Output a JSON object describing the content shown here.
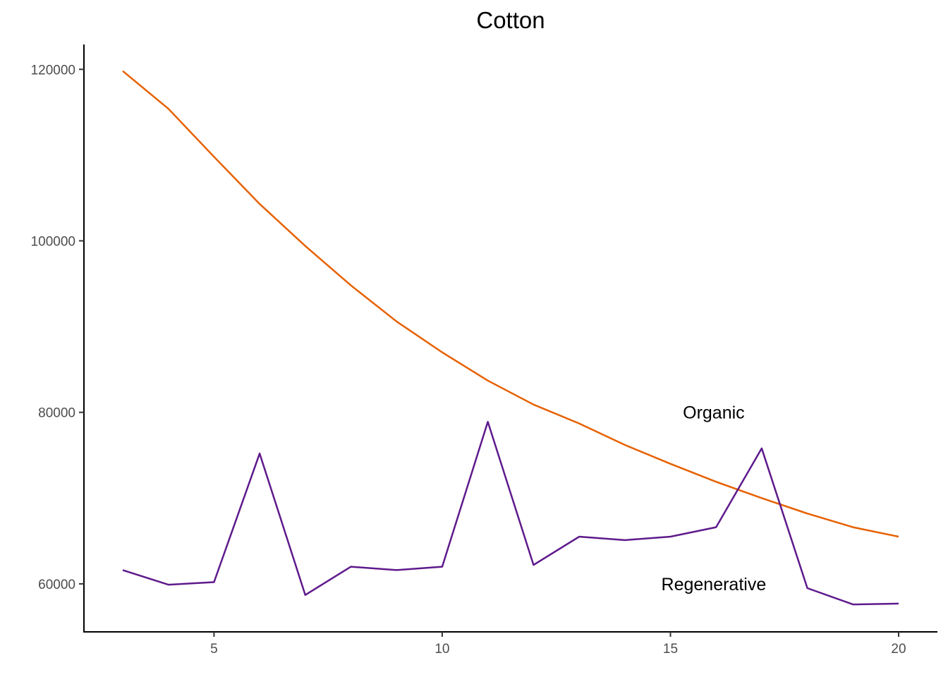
{
  "chart_data": {
    "type": "line",
    "title": "Cotton",
    "xlabel": "",
    "ylabel": "",
    "x": [
      3,
      4,
      5,
      6,
      7,
      8,
      9,
      10,
      11,
      12,
      13,
      14,
      15,
      16,
      17,
      18,
      19,
      20
    ],
    "xlim": [
      2.15,
      20.85
    ],
    "ylim": [
      54400,
      122900
    ],
    "x_ticks": [
      5,
      10,
      15,
      20
    ],
    "x_tick_labels": [
      "5",
      "10",
      "15",
      "20"
    ],
    "y_ticks": [
      60000,
      80000,
      100000,
      120000
    ],
    "y_tick_labels": [
      "60000",
      "80000",
      "100000",
      "120000"
    ],
    "grid": false,
    "legend": "none (direct labels)",
    "series": [
      {
        "name": "Organic",
        "color": "#e66101",
        "values": [
          119800,
          115400,
          109800,
          104300,
          99400,
          94800,
          90600,
          87000,
          83700,
          80900,
          78700,
          76200,
          74000,
          71900,
          70000,
          68200,
          66600,
          65500
        ]
      },
      {
        "name": "Regenerative",
        "color": "#5e1a8c",
        "values": [
          61600,
          59900,
          60200,
          75200,
          58700,
          62000,
          61600,
          62000,
          78900,
          62200,
          65500,
          65100,
          65500,
          66600,
          75800,
          59500,
          57600,
          57700
        ]
      }
    ],
    "annotations": [
      {
        "text": "Organic",
        "x": 15.95,
        "y": 80000,
        "series": "Organic"
      },
      {
        "text": "Regenerative",
        "x": 15.95,
        "y": 60000,
        "series": "Regenerative"
      }
    ]
  }
}
